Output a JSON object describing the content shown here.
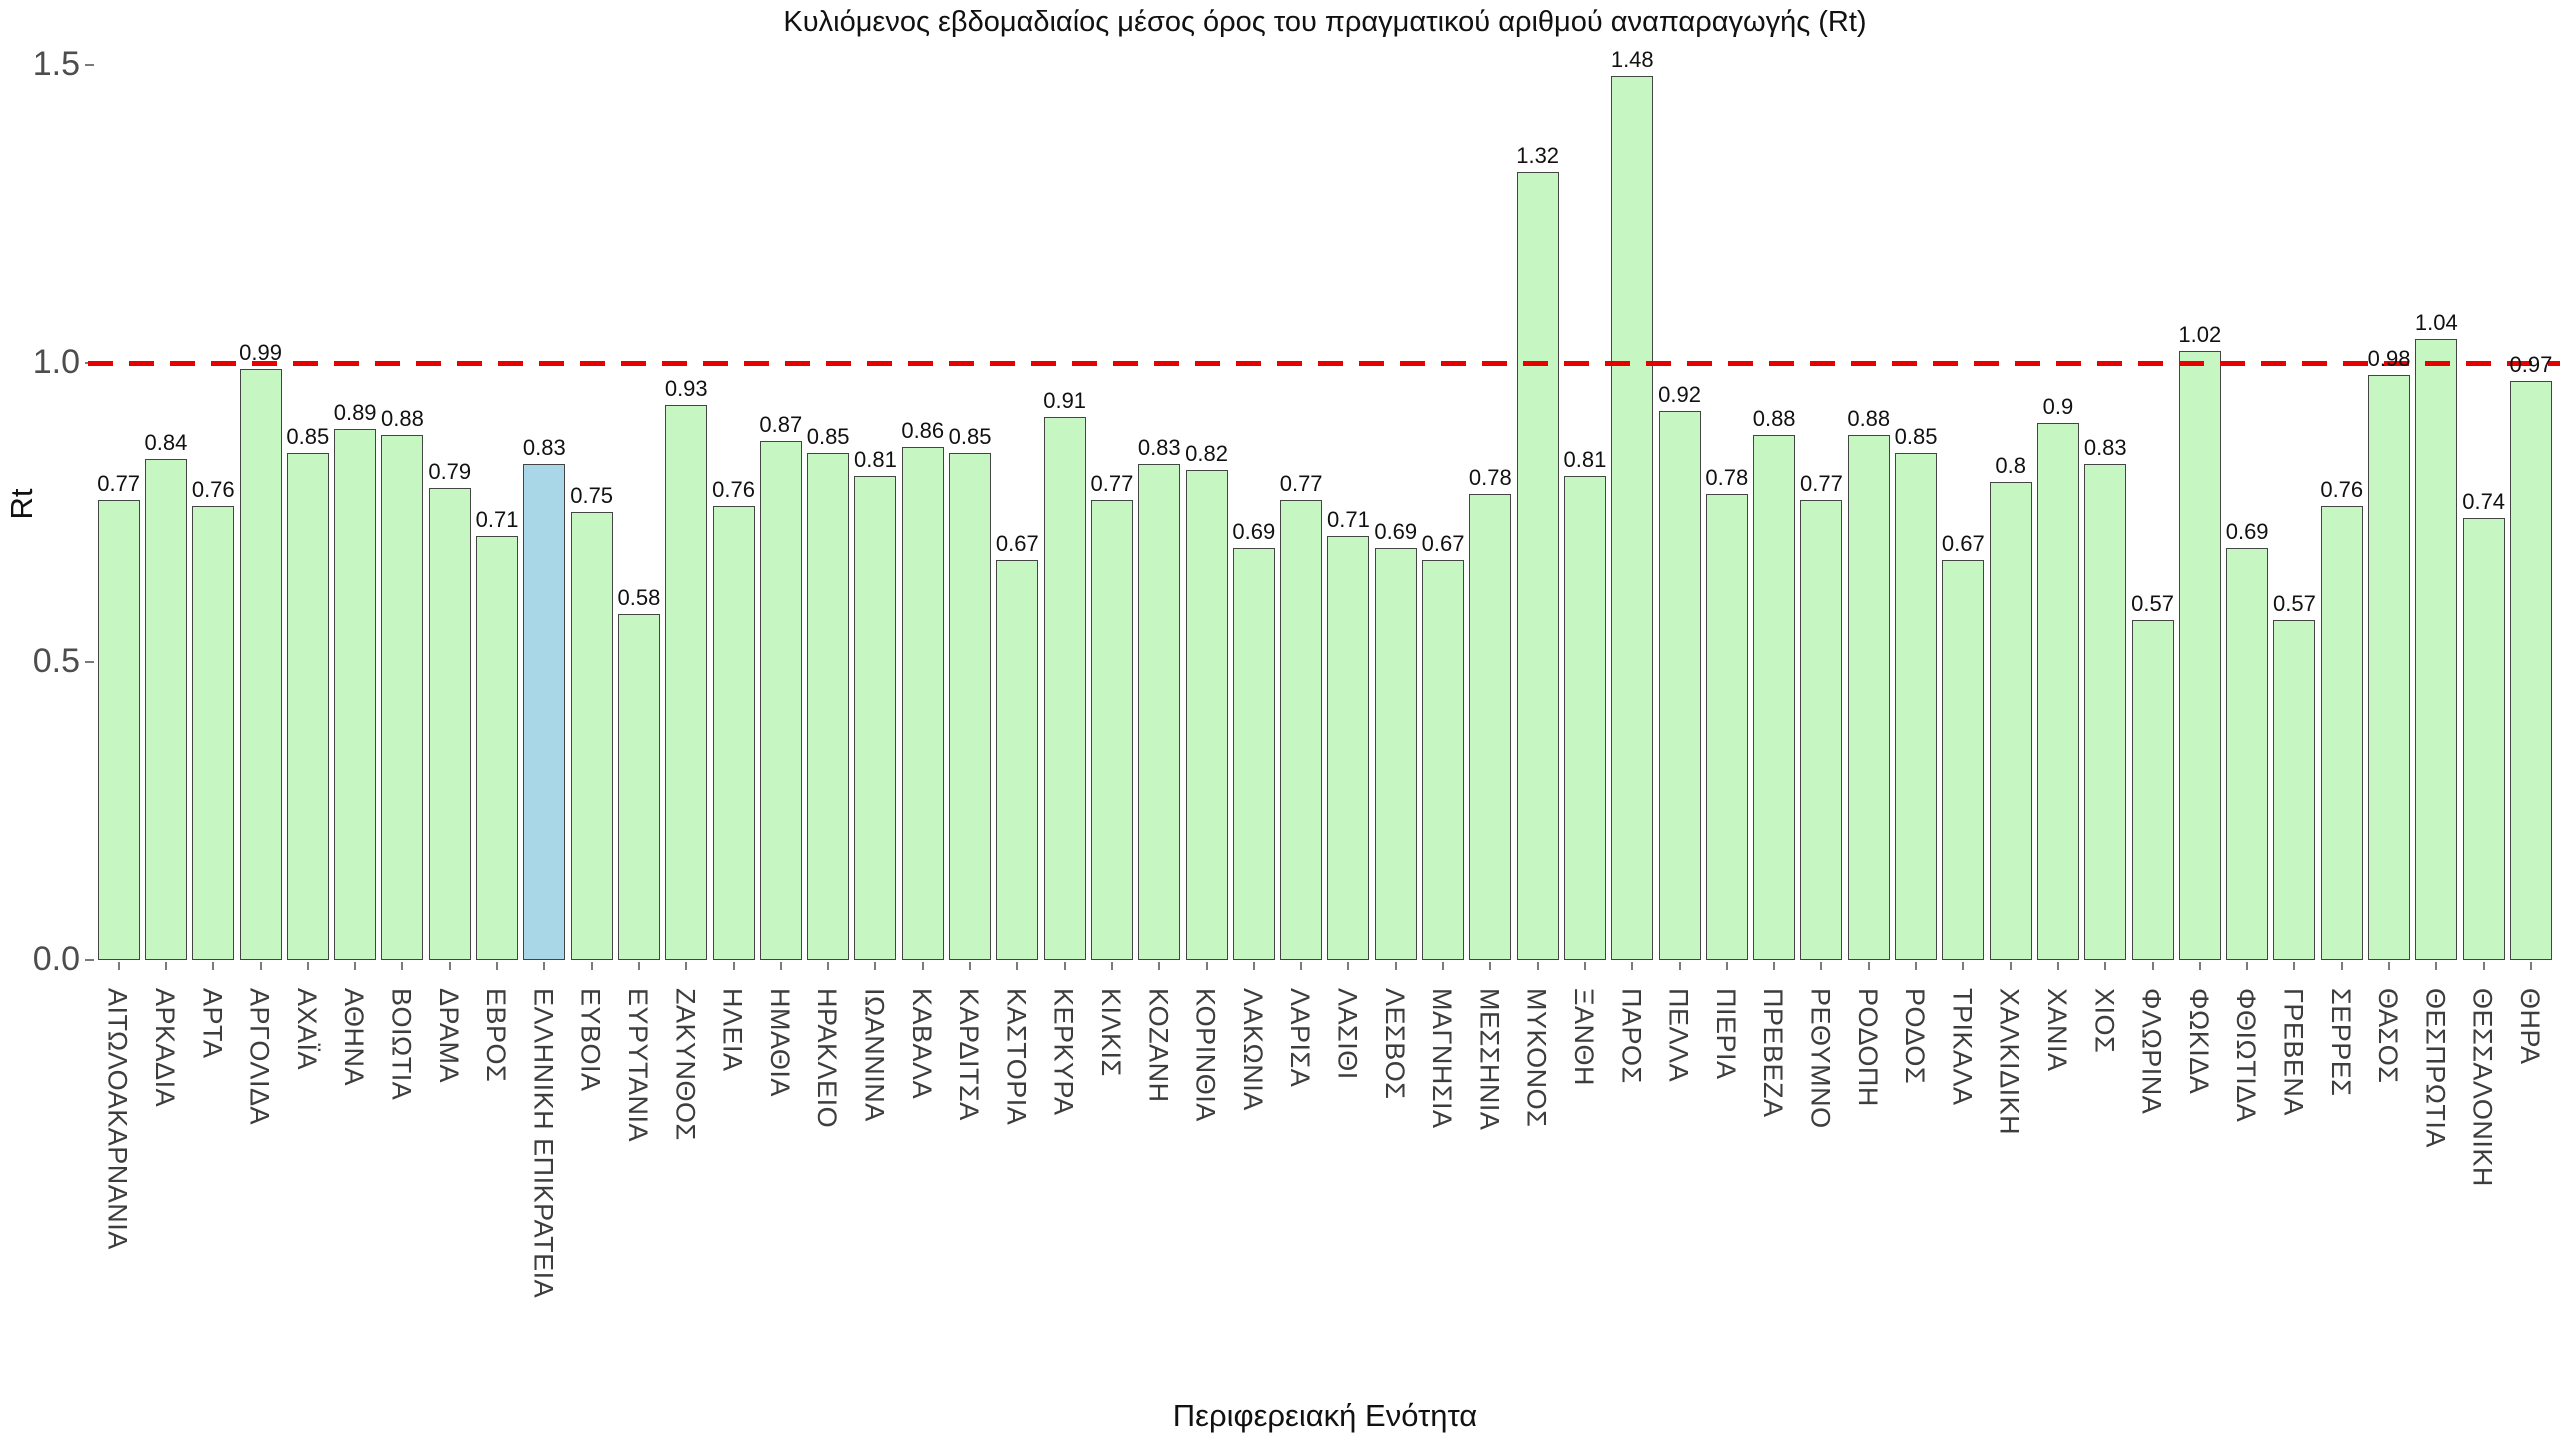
{
  "chart": {
    "title": "Κυλιόμενος εβδομαδιαίος μέσος όρος του πραγματικού αριθμού αναπαραγωγής (Rt)",
    "xlabel": "Περιφερειακή Ενότητα",
    "ylabel": "Rt"
  },
  "chart_data": {
    "type": "bar",
    "title": "Κυλιόμενος εβδομαδιαίος μέσος όρος του πραγματικού αριθμού αναπαραγωγής (Rt)",
    "xlabel": "Περιφερειακή Ενότητα",
    "ylabel": "Rt",
    "ylim": [
      0,
      1.5
    ],
    "grid": false,
    "legend": false,
    "yticks": {
      "values": [
        0,
        0.5,
        1.0,
        1.5
      ],
      "labels": [
        "0.0",
        "0.5",
        "1.0",
        "1.5"
      ]
    },
    "reference_line": {
      "y": 1.0,
      "style": "dashed",
      "color": "#e60000"
    },
    "categories": [
      "ΑΙΤΩΛΟΑΚΑΡΝΑΝΙΑ",
      "ΑΡΚΑΔΙΑ",
      "ΑΡΤΑ",
      "ΑΡΓΟΛΙΔΑ",
      "ΑΧΑΪΑ",
      "ΑΘΗΝΑ",
      "ΒΟΙΩΤΙΑ",
      "ΔΡΑΜΑ",
      "ΕΒΡΟΣ",
      "ΕΛΛΗΝΙΚΗ ΕΠΙΚΡΑΤΕΙΑ",
      "ΕΥΒΟΙΑ",
      "ΕΥΡΥΤΑΝΙΑ",
      "ΖΑΚΥΝΘΟΣ",
      "ΗΛΕΙΑ",
      "ΗΜΑΘΙΑ",
      "ΗΡΑΚΛΕΙΟ",
      "ΙΩΑΝΝΙΝΑ",
      "ΚΑΒΑΛΑ",
      "ΚΑΡΔΙΤΣΑ",
      "ΚΑΣΤΟΡΙΑ",
      "ΚΕΡΚΥΡΑ",
      "ΚΙΛΚΙΣ",
      "ΚΟΖΑΝΗ",
      "ΚΟΡΙΝΘΙΑ",
      "ΛΑΚΩΝΙΑ",
      "ΛΑΡΙΣΑ",
      "ΛΑΣΙΘΙ",
      "ΛΕΣΒΟΣ",
      "ΜΑΓΝΗΣΙΑ",
      "ΜΕΣΣΗΝΙΑ",
      "ΜΥΚΟΝΟΣ",
      "ΞΑΝΘΗ",
      "ΠΑΡΟΣ",
      "ΠΕΛΛΑ",
      "ΠΙΕΡΙΑ",
      "ΠΡΕΒΕΖΑ",
      "ΡΕΘΥΜΝΟ",
      "ΡΟΔΟΠΗ",
      "ΡΟΔΟΣ",
      "ΤΡΙΚΑΛΑ",
      "ΧΑΛΚΙΔΙΚΗ",
      "ΧΑΝΙΑ",
      "ΧΙΟΣ",
      "ΦΛΩΡΙΝΑ",
      "ΦΩΚΙΔΑ",
      "ΦΘΙΩΤΙΔΑ",
      "ΓΡΕΒΕΝΑ",
      "ΣΕΡΡΕΣ",
      "ΘΑΣΟΣ",
      "ΘΕΣΠΡΩΤΙΑ",
      "ΘΕΣΣΑΛΟΝΙΚΗ",
      "ΘΗΡΑ"
    ],
    "values": [
      0.77,
      0.84,
      0.76,
      0.99,
      0.85,
      0.89,
      0.88,
      0.79,
      0.71,
      0.83,
      0.75,
      0.58,
      0.93,
      0.76,
      0.87,
      0.85,
      0.81,
      0.86,
      0.85,
      0.67,
      0.91,
      0.77,
      0.83,
      0.82,
      0.69,
      0.77,
      0.71,
      0.69,
      0.67,
      0.78,
      1.32,
      0.81,
      1.48,
      0.92,
      0.78,
      0.88,
      0.77,
      0.88,
      0.85,
      0.67,
      0.8,
      0.9,
      0.83,
      0.57,
      1.02,
      0.69,
      0.57,
      0.76,
      0.98,
      1.04,
      0.74,
      0.97
    ],
    "value_labels": [
      "0.77",
      "0.84",
      "0.76",
      "0.99",
      "0.85",
      "0.89",
      "0.88",
      "0.79",
      "0.71",
      "0.83",
      "0.75",
      "0.58",
      "0.93",
      "0.76",
      "0.87",
      "0.85",
      "0.81",
      "0.86",
      "0.85",
      "0.67",
      "0.91",
      "0.77",
      "0.83",
      "0.82",
      "0.69",
      "0.77",
      "0.71",
      "0.69",
      "0.67",
      "0.78",
      "1.32",
      "0.81",
      "1.48",
      "0.92",
      "0.78",
      "0.88",
      "0.77",
      "0.88",
      "0.85",
      "0.67",
      "0.8",
      "0.9",
      "0.83",
      "0.57",
      "1.02",
      "0.69",
      "0.57",
      "0.76",
      "0.98",
      "1.04",
      "0.74",
      "0.97"
    ],
    "highlight_category": "ΕΛΛΗΝΙΚΗ ΕΠΙΚΡΑΤΕΙΑ",
    "highlight_index": 9,
    "colors": {
      "bar_fill": "#c6f6c2",
      "bar_highlight_fill": "#a9d7e8",
      "bar_border": "#444444",
      "reference_line": "#e60000",
      "tick_text": "#4d4d4d",
      "category_text": "#3d3d3d",
      "value_text": "#111111"
    }
  }
}
